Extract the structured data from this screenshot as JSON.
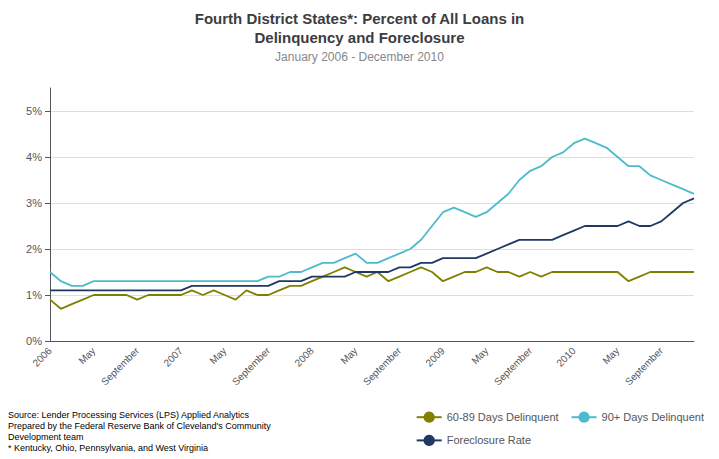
{
  "chart_data": {
    "type": "line",
    "title": "Fourth District States*: Percent of All Loans in\nDelinquency and Foreclosure",
    "subtitle": "January 2006 - December 2010",
    "annotations": [
      "Source: Lender Processing Services (LPS) Applied Analytics\nPrepared by the Federal Reserve Bank of Cleveland's Community\nDevelopment team\n* Kentucky, Ohio, Pennsylvania, and West Virginia"
    ],
    "categories": [
      "2006",
      null,
      null,
      null,
      "May",
      null,
      null,
      null,
      "September",
      null,
      null,
      null,
      "2007",
      null,
      null,
      null,
      "May",
      null,
      null,
      null,
      "September",
      null,
      null,
      null,
      "2008",
      null,
      null,
      null,
      "May",
      null,
      null,
      null,
      "September",
      null,
      null,
      null,
      "2009",
      null,
      null,
      null,
      "May",
      null,
      null,
      null,
      "September",
      null,
      null,
      null,
      "2010",
      null,
      null,
      null,
      "May",
      null,
      null,
      null,
      "September",
      null,
      null,
      null
    ],
    "series": [
      {
        "name": "60-89 Days Delinquent",
        "color": "#808000",
        "values": [
          0.009,
          0.007,
          0.008,
          0.009,
          0.01,
          0.01,
          0.01,
          0.01,
          0.009,
          0.01,
          0.01,
          0.01,
          0.01,
          0.011,
          0.01,
          0.011,
          0.01,
          0.009,
          0.011,
          0.01,
          0.01,
          0.011,
          0.012,
          0.012,
          0.013,
          0.014,
          0.015,
          0.016,
          0.015,
          0.014,
          0.015,
          0.013,
          0.014,
          0.015,
          0.016,
          0.015,
          0.013,
          0.014,
          0.015,
          0.015,
          0.016,
          0.015,
          0.015,
          0.014,
          0.015,
          0.014,
          0.015,
          0.015,
          0.015,
          0.015,
          0.015,
          0.015,
          0.015,
          0.013,
          0.014,
          0.015,
          0.015,
          0.015,
          0.015,
          0.015
        ]
      },
      {
        "name": "90+ Days Delinquent",
        "color": "#4DBBCC",
        "values": [
          0.015,
          0.013,
          0.012,
          0.012,
          0.013,
          0.013,
          0.013,
          0.013,
          0.013,
          0.013,
          0.013,
          0.013,
          0.013,
          0.013,
          0.013,
          0.013,
          0.013,
          0.013,
          0.013,
          0.013,
          0.014,
          0.014,
          0.015,
          0.015,
          0.016,
          0.017,
          0.017,
          0.018,
          0.019,
          0.017,
          0.017,
          0.018,
          0.019,
          0.02,
          0.022,
          0.025,
          0.028,
          0.029,
          0.028,
          0.027,
          0.028,
          0.03,
          0.032,
          0.035,
          0.037,
          0.038,
          0.04,
          0.041,
          0.043,
          0.044,
          0.043,
          0.042,
          0.04,
          0.038,
          0.038,
          0.036,
          0.035,
          0.034,
          0.033,
          0.032
        ]
      },
      {
        "name": "Foreclosure Rate",
        "color": "#1F3864",
        "values": [
          0.011,
          0.011,
          0.011,
          0.011,
          0.011,
          0.011,
          0.011,
          0.011,
          0.011,
          0.011,
          0.011,
          0.011,
          0.011,
          0.012,
          0.012,
          0.012,
          0.012,
          0.012,
          0.012,
          0.012,
          0.012,
          0.013,
          0.013,
          0.013,
          0.014,
          0.014,
          0.014,
          0.014,
          0.015,
          0.015,
          0.015,
          0.015,
          0.016,
          0.016,
          0.017,
          0.017,
          0.018,
          0.018,
          0.018,
          0.018,
          0.019,
          0.02,
          0.021,
          0.022,
          0.022,
          0.022,
          0.022,
          0.023,
          0.024,
          0.025,
          0.025,
          0.025,
          0.025,
          0.026,
          0.025,
          0.025,
          0.026,
          0.028,
          0.03,
          0.031
        ]
      }
    ],
    "ylim": [
      0,
      0.055
    ],
    "yticks": [
      {
        "value": 0,
        "label": "0%"
      },
      {
        "value": 0.01,
        "label": "1%"
      },
      {
        "value": 0.02,
        "label": "2%"
      },
      {
        "value": 0.03,
        "label": "3%"
      },
      {
        "value": 0.04,
        "label": "4%"
      },
      {
        "value": 0.05,
        "label": "5%"
      }
    ],
    "grid": true,
    "legend": "lower right"
  }
}
